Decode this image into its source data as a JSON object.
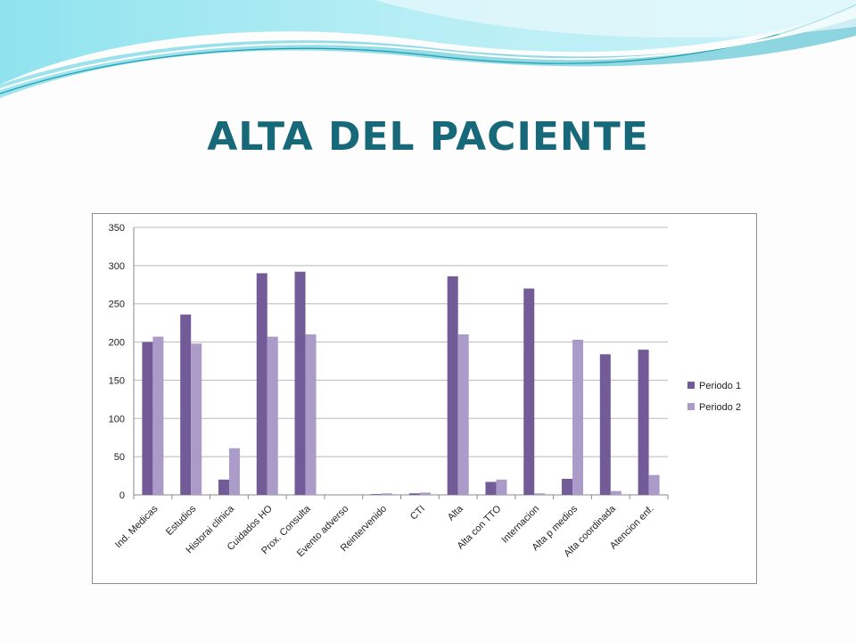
{
  "slide": {
    "title": "ALTA DEL PACIENTE"
  },
  "colors": {
    "title": "#17697a",
    "series1": "#735b98",
    "series2": "#ab9bc9",
    "gridline": "#b9b9b9",
    "wave_light": "#7fdbe9",
    "wave_dark": "#1ea3b3"
  },
  "chart_data": {
    "type": "bar",
    "categories": [
      "Ind. Medicas",
      "Estudios",
      "Historai clinica",
      "Cuidados HO",
      "Prox. Consulta",
      "Evento adverso",
      "Reintervenido",
      "CTI",
      "Alta",
      "Alta con TTO",
      "Internacion",
      "Alta p medios",
      "Alta coordinada",
      "Atencion enf."
    ],
    "series": [
      {
        "name": "Periodo 1",
        "values": [
          200,
          236,
          20,
          290,
          292,
          0,
          1,
          2,
          286,
          17,
          270,
          21,
          184,
          190
        ]
      },
      {
        "name": "Periodo  2",
        "values": [
          207,
          198,
          61,
          207,
          210,
          0,
          2,
          3,
          210,
          20,
          2,
          203,
          5,
          26
        ]
      }
    ],
    "ylim": [
      0,
      350
    ],
    "yticks": [
      0,
      50,
      100,
      150,
      200,
      250,
      300,
      350
    ],
    "grid": true,
    "legend": "right",
    "xlabel": "",
    "ylabel": "",
    "title": ""
  }
}
